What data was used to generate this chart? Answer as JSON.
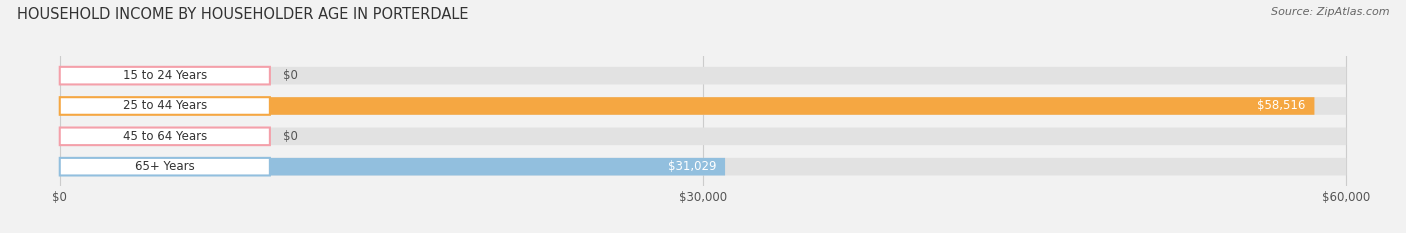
{
  "title": "HOUSEHOLD INCOME BY HOUSEHOLDER AGE IN PORTERDALE",
  "source": "Source: ZipAtlas.com",
  "categories": [
    "15 to 24 Years",
    "25 to 44 Years",
    "45 to 64 Years",
    "65+ Years"
  ],
  "values": [
    0,
    58516,
    0,
    31029
  ],
  "bar_colors": [
    "#f4a0aa",
    "#f5a742",
    "#f4a0aa",
    "#92bfde"
  ],
  "value_labels": [
    "$0",
    "$58,516",
    "$0",
    "$31,029"
  ],
  "xlim": [
    0,
    60000
  ],
  "xticks": [
    0,
    30000,
    60000
  ],
  "xtick_labels": [
    "$0",
    "$30,000",
    "$60,000"
  ],
  "background_color": "#f2f2f2",
  "bar_background": "#e2e2e2",
  "title_fontsize": 10.5,
  "source_fontsize": 8,
  "label_fontsize": 8.5,
  "value_fontsize": 8.5
}
